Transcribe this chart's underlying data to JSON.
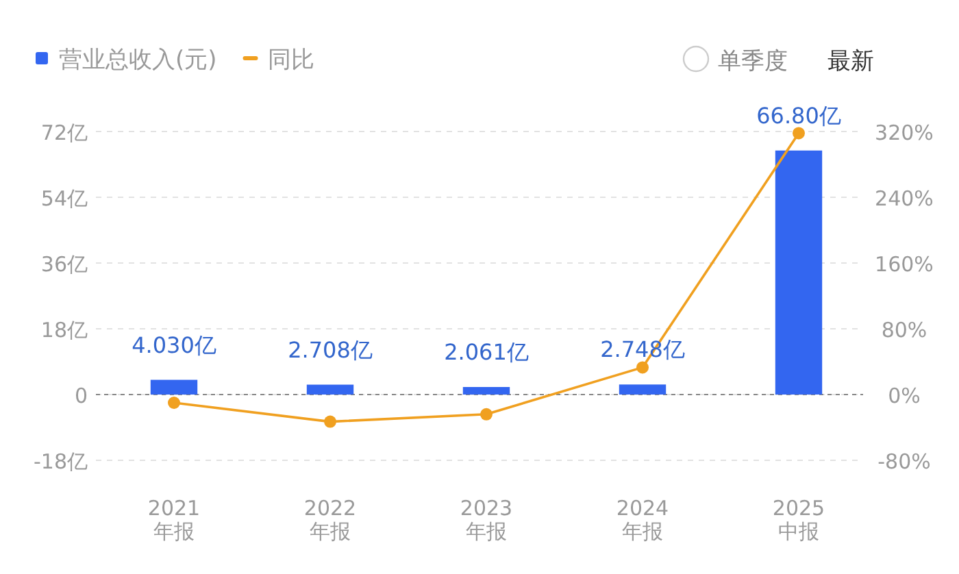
{
  "chart_data": {
    "type": "bar",
    "categories": [
      "2021\n年报",
      "2022\n年报",
      "2023\n年报",
      "2024\n年报",
      "2025\n中报"
    ],
    "series": [
      {
        "name": "营业总收入(元)",
        "color": "#3366f0",
        "values": [
          4.03,
          2.708,
          2.061,
          2.748,
          66.8
        ],
        "value_labels": [
          "4.030亿",
          "2.708亿",
          "2.061亿",
          "2.748亿",
          "66.80亿"
        ]
      },
      {
        "name": "同比",
        "type": "line",
        "axis": "y2",
        "color": "#f0a020",
        "marker": "circle",
        "values": [
          -10,
          -33,
          -24,
          33,
          318
        ]
      }
    ],
    "ylim": [
      -18,
      72
    ],
    "yticks": [
      {
        "value": -18,
        "label": "-18亿"
      },
      0,
      {
        "value": 18,
        "label": "18亿"
      },
      {
        "value": 36,
        "label": "36亿"
      },
      {
        "value": 54,
        "label": "54亿"
      },
      {
        "value": 72,
        "label": "72亿"
      }
    ],
    "y2lim": [
      -80,
      320
    ],
    "y2ticks": [
      {
        "value": -80,
        "label": "-80%"
      },
      {
        "value": 0,
        "label": "0%"
      },
      {
        "value": 80,
        "label": "80%"
      },
      {
        "value": 160,
        "label": "160%"
      },
      {
        "value": 240,
        "label": "240%"
      },
      {
        "value": 320,
        "label": "320%"
      }
    ],
    "ref_lines": [
      {
        "axis": "y",
        "value": 0,
        "color": "#888888",
        "line_style": "dashed"
      }
    ],
    "grid": "y",
    "legend": "top left",
    "annotations": [
      "单季度",
      "最新"
    ]
  }
}
